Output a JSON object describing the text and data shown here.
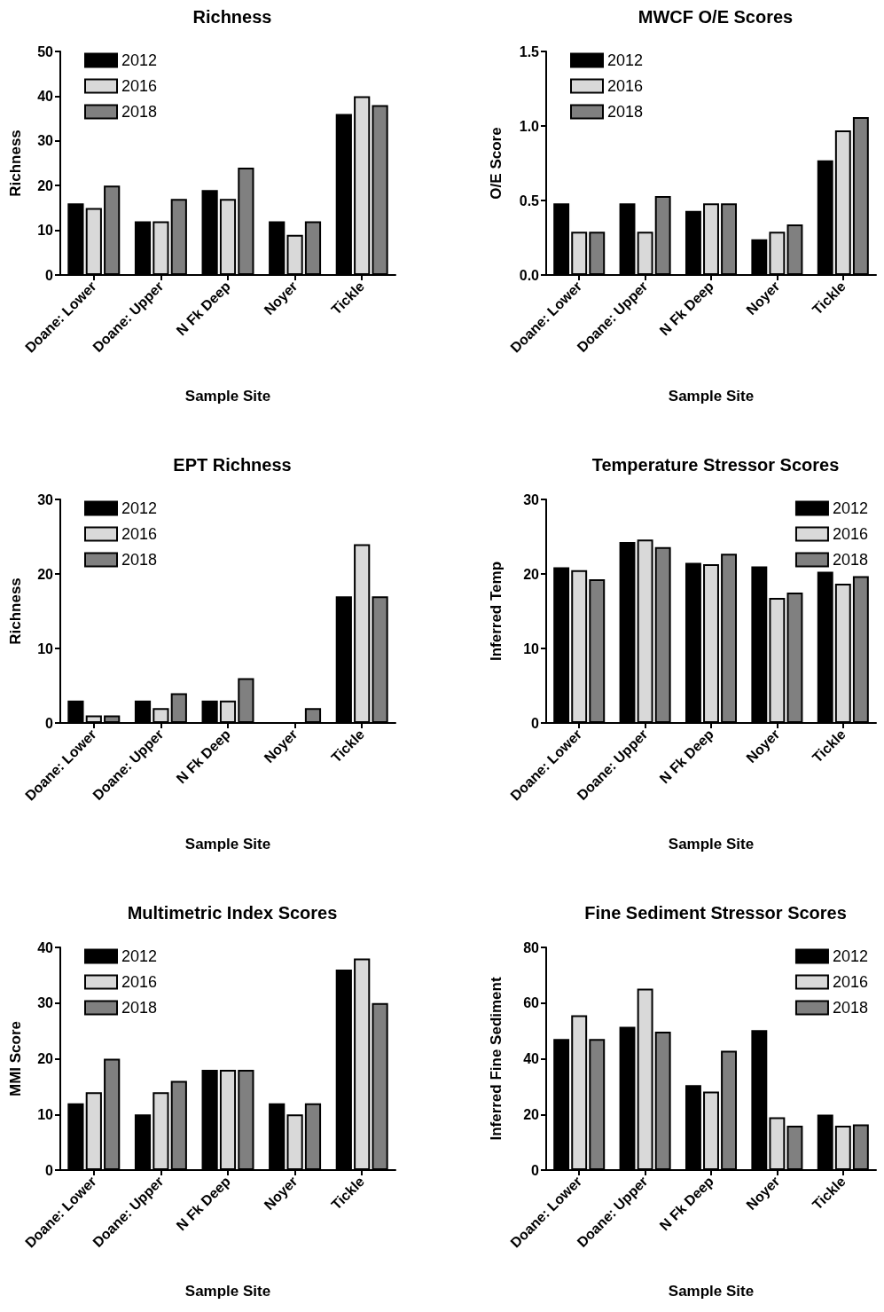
{
  "chart_data": [
    {
      "type": "bar",
      "title": "Richness",
      "xlabel": "Sample Site",
      "ylabel": "Richness",
      "categories": [
        "Doane: Lower",
        "Doane: Upper",
        "N Fk Deep",
        "Noyer",
        "Tickle"
      ],
      "ylim": [
        0,
        50
      ],
      "yticks": [
        0,
        10,
        20,
        30,
        40,
        50
      ],
      "grid": false,
      "legend": "top left",
      "series": [
        {
          "name": "2012",
          "color": "#000000",
          "values": [
            16,
            12,
            19,
            12,
            36
          ]
        },
        {
          "name": "2016",
          "color": "#d9d9d9",
          "values": [
            15,
            12,
            17,
            9,
            40
          ]
        },
        {
          "name": "2018",
          "color": "#808080",
          "values": [
            20,
            17,
            24,
            12,
            38
          ]
        }
      ]
    },
    {
      "type": "bar",
      "title": "MWCF O/E Scores",
      "xlabel": "Sample Site",
      "ylabel": "O/E Score",
      "categories": [
        "Doane: Lower",
        "Doane: Upper",
        "N Fk Deep",
        "Noyer",
        "Tickle"
      ],
      "ylim": [
        0,
        1.5
      ],
      "yticks": [
        {
          "value": 0,
          "label": "0.0"
        },
        0.5,
        {
          "value": 1,
          "label": "1.0"
        },
        1.5
      ],
      "grid": false,
      "legend": "top left",
      "series": [
        {
          "name": "2012",
          "color": "#000000",
          "values": [
            0.48,
            0.48,
            0.43,
            0.24,
            0.77
          ]
        },
        {
          "name": "2016",
          "color": "#d9d9d9",
          "values": [
            0.29,
            0.29,
            0.48,
            0.29,
            0.97
          ]
        },
        {
          "name": "2018",
          "color": "#808080",
          "values": [
            0.29,
            0.53,
            0.48,
            0.34,
            1.06
          ]
        }
      ]
    },
    {
      "type": "bar",
      "title": "EPT Richness",
      "xlabel": "Sample Site",
      "ylabel": "Richness",
      "categories": [
        "Doane: Lower",
        "Doane: Upper",
        "N Fk Deep",
        "Noyer",
        "Tickle"
      ],
      "ylim": [
        0,
        30
      ],
      "yticks": [
        0,
        10,
        20,
        30
      ],
      "grid": false,
      "legend": "top left",
      "series": [
        {
          "name": "2012",
          "color": "#000000",
          "values": [
            3,
            3,
            3,
            0,
            17
          ]
        },
        {
          "name": "2016",
          "color": "#d9d9d9",
          "values": [
            1,
            2,
            3,
            0,
            24
          ]
        },
        {
          "name": "2018",
          "color": "#808080",
          "values": [
            1,
            4,
            6,
            2,
            17
          ]
        }
      ]
    },
    {
      "type": "bar",
      "title": "Temperature Stressor Scores",
      "xlabel": "Sample Site",
      "ylabel": "Inferred Temp",
      "categories": [
        "Doane: Lower",
        "Doane: Upper",
        "N Fk Deep",
        "Noyer",
        "Tickle"
      ],
      "ylim": [
        0,
        30
      ],
      "yticks": [
        0,
        10,
        20,
        30
      ],
      "grid": false,
      "legend": "top right",
      "series": [
        {
          "name": "2012",
          "color": "#000000",
          "values": [
            20.9,
            24.3,
            21.5,
            21.0,
            20.3
          ]
        },
        {
          "name": "2016",
          "color": "#d9d9d9",
          "values": [
            20.5,
            24.6,
            21.3,
            16.8,
            18.7
          ]
        },
        {
          "name": "2018",
          "color": "#808080",
          "values": [
            19.3,
            23.6,
            22.7,
            17.5,
            19.7
          ]
        }
      ]
    },
    {
      "type": "bar",
      "title": "Multimetric Index Scores",
      "xlabel": "Sample Site",
      "ylabel": "MMI Score",
      "categories": [
        "Doane: Lower",
        "Doane: Upper",
        "N Fk Deep",
        "Noyer",
        "Tickle"
      ],
      "ylim": [
        0,
        40
      ],
      "yticks": [
        0,
        10,
        20,
        30,
        40
      ],
      "grid": false,
      "legend": "top left",
      "series": [
        {
          "name": "2012",
          "color": "#000000",
          "values": [
            12,
            10,
            18,
            12,
            36
          ]
        },
        {
          "name": "2016",
          "color": "#d9d9d9",
          "values": [
            14,
            14,
            18,
            10,
            38
          ]
        },
        {
          "name": "2018",
          "color": "#808080",
          "values": [
            20,
            16,
            18,
            12,
            30
          ]
        }
      ]
    },
    {
      "type": "bar",
      "title": "Fine Sediment Stressor Scores",
      "xlabel": "Sample Site",
      "ylabel": "Inferred Fine Sediment",
      "categories": [
        "Doane: Lower",
        "Doane: Upper",
        "N Fk Deep",
        "Noyer",
        "Tickle"
      ],
      "ylim": [
        0,
        80
      ],
      "yticks": [
        0,
        20,
        40,
        60,
        80
      ],
      "grid": false,
      "legend": "top right",
      "series": [
        {
          "name": "2012",
          "color": "#000000",
          "values": [
            47.1,
            51.5,
            30.5,
            50.3,
            19.9
          ]
        },
        {
          "name": "2016",
          "color": "#d9d9d9",
          "values": [
            55.6,
            65.2,
            28.2,
            19.0,
            15.9
          ]
        },
        {
          "name": "2018",
          "color": "#808080",
          "values": [
            47.1,
            49.7,
            42.9,
            15.9,
            16.4
          ]
        }
      ]
    }
  ]
}
